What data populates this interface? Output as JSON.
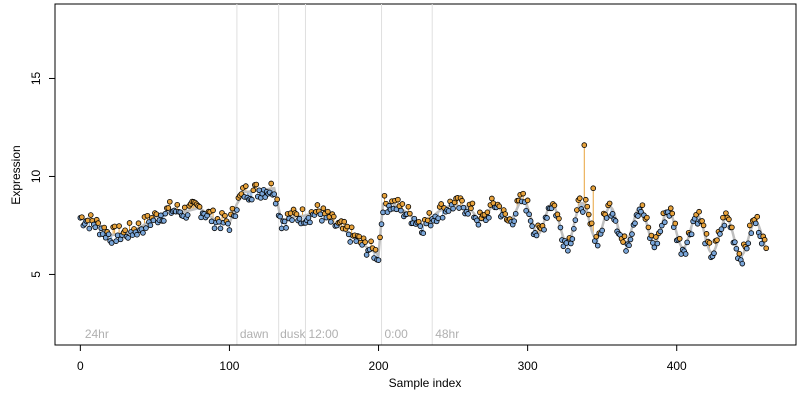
{
  "chart_data": {
    "type": "scatter",
    "title": "",
    "xlabel": "Sample index",
    "ylabel": "Expression",
    "xlim": [
      -17,
      480
    ],
    "ylim": [
      1.4,
      18.8
    ],
    "x_ticks": [
      0,
      100,
      200,
      300,
      400
    ],
    "y_ticks": [
      5,
      10,
      15
    ],
    "grid": false,
    "legend": "none",
    "phase_boundaries": [
      105,
      133,
      151,
      202,
      236
    ],
    "phase_labels": [
      {
        "text": "24hr",
        "x": 3
      },
      {
        "text": "dawn",
        "x": 107
      },
      {
        "text": "dusk",
        "x": 134
      },
      {
        "text": "12:00",
        "x": 153
      },
      {
        "text": "0:00",
        "x": 204
      },
      {
        "text": "48hr",
        "x": 238
      }
    ],
    "colors": {
      "above_fit": "#e8a33c",
      "below_fit": "#7aa6d9",
      "fit_line": "#bfbfbf",
      "points_edge": "#000000",
      "boundary": "#e0e0e0"
    },
    "anchors": [
      [
        0,
        7.9
      ],
      [
        10,
        7.6
      ],
      [
        20,
        7.0
      ],
      [
        30,
        7.1
      ],
      [
        40,
        7.4
      ],
      [
        50,
        7.9
      ],
      [
        60,
        8.3
      ],
      [
        70,
        8.2
      ],
      [
        80,
        8.4
      ],
      [
        90,
        7.8
      ],
      [
        100,
        7.6
      ],
      [
        105,
        8.6
      ],
      [
        110,
        9.2
      ],
      [
        120,
        9.3
      ],
      [
        130,
        9.4
      ],
      [
        135,
        7.7
      ],
      [
        140,
        7.9
      ],
      [
        150,
        8.0
      ],
      [
        160,
        8.2
      ],
      [
        170,
        7.6
      ],
      [
        180,
        7.1
      ],
      [
        190,
        6.5
      ],
      [
        200,
        6.0
      ],
      [
        203,
        8.6
      ],
      [
        210,
        8.6
      ],
      [
        220,
        8.1
      ],
      [
        230,
        7.5
      ],
      [
        240,
        8.2
      ],
      [
        250,
        8.6
      ],
      [
        260,
        8.3
      ],
      [
        270,
        8.0
      ],
      [
        280,
        8.2
      ],
      [
        290,
        8.3
      ],
      [
        300,
        8.0
      ],
      [
        310,
        7.9
      ],
      [
        320,
        7.6
      ],
      [
        330,
        7.5
      ],
      [
        340,
        7.9
      ],
      [
        350,
        7.6
      ],
      [
        360,
        7.5
      ],
      [
        370,
        7.4
      ],
      [
        380,
        7.6
      ],
      [
        390,
        7.4
      ],
      [
        400,
        7.3
      ],
      [
        410,
        7.2
      ],
      [
        420,
        7.0
      ],
      [
        430,
        7.0
      ],
      [
        440,
        6.9
      ],
      [
        450,
        6.8
      ],
      [
        460,
        6.8
      ]
    ],
    "n_points": 460,
    "outliers": [
      [
        338,
        11.6
      ],
      [
        344,
        9.4
      ]
    ]
  }
}
